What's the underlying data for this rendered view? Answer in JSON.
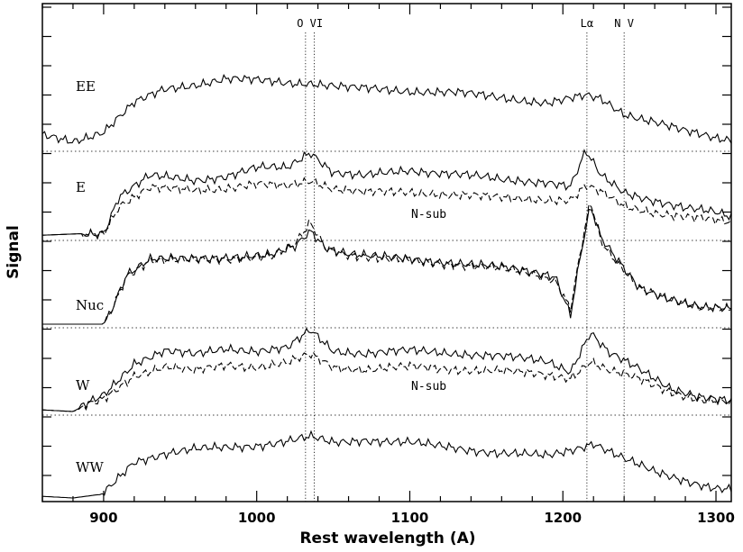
{
  "chart_data": {
    "type": "line",
    "xlabel": "Rest wavelength (A)",
    "ylabel": "Signal",
    "xlim": [
      860,
      1310
    ],
    "x_ticks": [
      900,
      1000,
      1100,
      1200,
      1300
    ],
    "x_tick_labels": [
      "900",
      "1000",
      "1100",
      "1200",
      "1300"
    ],
    "y_ticks_visible": false,
    "grid": false,
    "reference_lines": [
      {
        "label": "O VI",
        "x": [
          1031.9,
          1037.6
        ]
      },
      {
        "label": "Lα",
        "x": [
          1215.7
        ]
      },
      {
        "label": "N V",
        "x": [
          1240
        ]
      }
    ],
    "panel_separators": "dotted horizontal lines between stacked spectra",
    "panels": [
      {
        "name": "EE",
        "series": [
          {
            "style": "solid",
            "points": [
              [
                860,
                0.15
              ],
              [
                880,
                0.08
              ],
              [
                900,
                0.2
              ],
              [
                920,
                0.55
              ],
              [
                940,
                0.72
              ],
              [
                960,
                0.78
              ],
              [
                980,
                0.85
              ],
              [
                1000,
                0.83
              ],
              [
                1020,
                0.8
              ],
              [
                1035,
                0.8
              ],
              [
                1060,
                0.74
              ],
              [
                1080,
                0.72
              ],
              [
                1100,
                0.7
              ],
              [
                1130,
                0.68
              ],
              [
                1160,
                0.62
              ],
              [
                1190,
                0.55
              ],
              [
                1210,
                0.62
              ],
              [
                1215,
                0.64
              ],
              [
                1225,
                0.6
              ],
              [
                1240,
                0.42
              ],
              [
                1260,
                0.32
              ],
              [
                1280,
                0.2
              ],
              [
                1300,
                0.12
              ],
              [
                1310,
                0.1
              ]
            ]
          }
        ]
      },
      {
        "name": "E",
        "annotations": [
          "N-sub"
        ],
        "series": [
          {
            "style": "solid",
            "points": [
              [
                860,
                0.02
              ],
              [
                900,
                0.05
              ],
              [
                910,
                0.5
              ],
              [
                930,
                0.75
              ],
              [
                960,
                0.7
              ],
              [
                980,
                0.75
              ],
              [
                1000,
                0.85
              ],
              [
                1020,
                0.85
              ],
              [
                1035,
                1.05
              ],
              [
                1050,
                0.8
              ],
              [
                1070,
                0.75
              ],
              [
                1100,
                0.82
              ],
              [
                1130,
                0.78
              ],
              [
                1160,
                0.7
              ],
              [
                1190,
                0.68
              ],
              [
                1205,
                0.62
              ],
              [
                1215,
                1.05
              ],
              [
                1225,
                0.75
              ],
              [
                1240,
                0.55
              ],
              [
                1260,
                0.45
              ],
              [
                1280,
                0.35
              ],
              [
                1300,
                0.3
              ],
              [
                1310,
                0.25
              ]
            ]
          },
          {
            "style": "dashed",
            "points": [
              [
                860,
                0.02
              ],
              [
                900,
                0.05
              ],
              [
                910,
                0.38
              ],
              [
                930,
                0.6
              ],
              [
                960,
                0.58
              ],
              [
                980,
                0.6
              ],
              [
                1000,
                0.65
              ],
              [
                1020,
                0.62
              ],
              [
                1035,
                0.7
              ],
              [
                1050,
                0.6
              ],
              [
                1070,
                0.55
              ],
              [
                1100,
                0.55
              ],
              [
                1130,
                0.52
              ],
              [
                1160,
                0.48
              ],
              [
                1190,
                0.46
              ],
              [
                1205,
                0.45
              ],
              [
                1215,
                0.62
              ],
              [
                1225,
                0.55
              ],
              [
                1240,
                0.38
              ],
              [
                1260,
                0.3
              ],
              [
                1280,
                0.24
              ],
              [
                1300,
                0.2
              ],
              [
                1310,
                0.18
              ]
            ]
          }
        ]
      },
      {
        "name": "Nuc",
        "series": [
          {
            "style": "solid",
            "points": [
              [
                860,
                0.0
              ],
              [
                900,
                0.0
              ],
              [
                905,
                0.18
              ],
              [
                915,
                0.62
              ],
              [
                930,
                0.8
              ],
              [
                950,
                0.8
              ],
              [
                970,
                0.82
              ],
              [
                990,
                0.84
              ],
              [
                1010,
                0.85
              ],
              [
                1025,
                0.95
              ],
              [
                1035,
                1.15
              ],
              [
                1045,
                0.95
              ],
              [
                1060,
                0.88
              ],
              [
                1080,
                0.83
              ],
              [
                1100,
                0.8
              ],
              [
                1130,
                0.76
              ],
              [
                1160,
                0.7
              ],
              [
                1180,
                0.65
              ],
              [
                1195,
                0.6
              ],
              [
                1205,
                0.12
              ],
              [
                1212,
                0.9
              ],
              [
                1218,
                1.45
              ],
              [
                1225,
                1.05
              ],
              [
                1235,
                0.8
              ],
              [
                1250,
                0.45
              ],
              [
                1270,
                0.32
              ],
              [
                1290,
                0.2
              ],
              [
                1310,
                0.18
              ]
            ]
          },
          {
            "style": "dashed",
            "points": [
              [
                860,
                0.0
              ],
              [
                900,
                0.0
              ],
              [
                905,
                0.18
              ],
              [
                915,
                0.6
              ],
              [
                930,
                0.78
              ],
              [
                950,
                0.78
              ],
              [
                970,
                0.8
              ],
              [
                990,
                0.82
              ],
              [
                1010,
                0.83
              ],
              [
                1025,
                0.98
              ],
              [
                1035,
                1.25
              ],
              [
                1045,
                0.95
              ],
              [
                1060,
                0.86
              ],
              [
                1080,
                0.8
              ],
              [
                1100,
                0.78
              ],
              [
                1130,
                0.74
              ],
              [
                1160,
                0.68
              ],
              [
                1180,
                0.62
              ],
              [
                1195,
                0.55
              ],
              [
                1205,
                0.2
              ],
              [
                1212,
                0.95
              ],
              [
                1218,
                1.52
              ],
              [
                1225,
                1.0
              ],
              [
                1235,
                0.75
              ],
              [
                1250,
                0.45
              ],
              [
                1270,
                0.32
              ],
              [
                1290,
                0.2
              ],
              [
                1310,
                0.18
              ]
            ]
          }
        ]
      },
      {
        "name": "W",
        "annotations": [
          "N-sub"
        ],
        "series": [
          {
            "style": "solid",
            "points": [
              [
                860,
                0.02
              ],
              [
                880,
                0.0
              ],
              [
                900,
                0.2
              ],
              [
                920,
                0.6
              ],
              [
                940,
                0.75
              ],
              [
                960,
                0.7
              ],
              [
                980,
                0.78
              ],
              [
                1000,
                0.75
              ],
              [
                1020,
                0.78
              ],
              [
                1035,
                1.0
              ],
              [
                1050,
                0.75
              ],
              [
                1070,
                0.72
              ],
              [
                1100,
                0.75
              ],
              [
                1130,
                0.72
              ],
              [
                1160,
                0.68
              ],
              [
                1190,
                0.62
              ],
              [
                1205,
                0.5
              ],
              [
                1218,
                0.98
              ],
              [
                1230,
                0.72
              ],
              [
                1250,
                0.52
              ],
              [
                1270,
                0.3
              ],
              [
                1290,
                0.18
              ],
              [
                1310,
                0.12
              ]
            ]
          },
          {
            "style": "dashed",
            "points": [
              [
                860,
                0.02
              ],
              [
                880,
                0.0
              ],
              [
                900,
                0.15
              ],
              [
                920,
                0.45
              ],
              [
                940,
                0.55
              ],
              [
                960,
                0.5
              ],
              [
                980,
                0.58
              ],
              [
                1000,
                0.55
              ],
              [
                1020,
                0.6
              ],
              [
                1035,
                0.7
              ],
              [
                1050,
                0.55
              ],
              [
                1070,
                0.52
              ],
              [
                1100,
                0.55
              ],
              [
                1130,
                0.52
              ],
              [
                1160,
                0.5
              ],
              [
                1190,
                0.45
              ],
              [
                1205,
                0.42
              ],
              [
                1218,
                0.62
              ],
              [
                1230,
                0.5
              ],
              [
                1250,
                0.4
              ],
              [
                1270,
                0.25
              ],
              [
                1290,
                0.14
              ],
              [
                1310,
                0.1
              ]
            ]
          }
        ]
      },
      {
        "name": "WW",
        "series": [
          {
            "style": "solid",
            "points": [
              [
                860,
                0.02
              ],
              [
                880,
                0.0
              ],
              [
                900,
                0.05
              ],
              [
                920,
                0.45
              ],
              [
                940,
                0.55
              ],
              [
                960,
                0.6
              ],
              [
                980,
                0.62
              ],
              [
                1000,
                0.65
              ],
              [
                1020,
                0.7
              ],
              [
                1035,
                0.75
              ],
              [
                1050,
                0.68
              ],
              [
                1070,
                0.72
              ],
              [
                1100,
                0.68
              ],
              [
                1130,
                0.62
              ],
              [
                1160,
                0.55
              ],
              [
                1190,
                0.52
              ],
              [
                1210,
                0.62
              ],
              [
                1220,
                0.68
              ],
              [
                1240,
                0.48
              ],
              [
                1260,
                0.32
              ],
              [
                1280,
                0.22
              ],
              [
                1300,
                0.12
              ],
              [
                1310,
                0.1
              ]
            ]
          }
        ]
      }
    ]
  }
}
